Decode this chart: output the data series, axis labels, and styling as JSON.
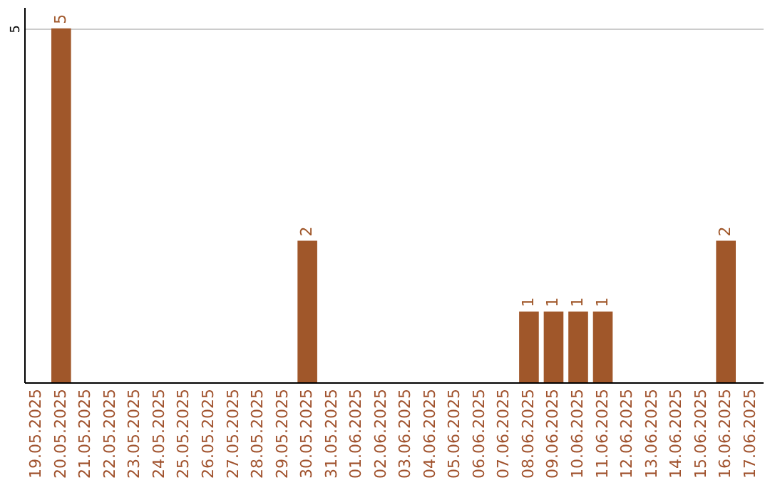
{
  "chart_data": {
    "type": "bar",
    "categories": [
      "19.05.2025",
      "20.05.2025",
      "21.05.2025",
      "22.05.2025",
      "23.05.2025",
      "24.05.2025",
      "25.05.2025",
      "26.05.2025",
      "27.05.2025",
      "28.05.2025",
      "29.05.2025",
      "30.05.2025",
      "31.05.2025",
      "01.06.2025",
      "02.06.2025",
      "03.06.2025",
      "04.06.2025",
      "05.06.2025",
      "06.06.2025",
      "07.06.2025",
      "08.06.2025",
      "09.06.2025",
      "10.06.2025",
      "11.06.2025",
      "12.06.2025",
      "13.06.2025",
      "14.06.2025",
      "15.06.2025",
      "16.06.2025",
      "17.06.2025"
    ],
    "values": [
      0,
      5,
      0,
      0,
      0,
      0,
      0,
      0,
      0,
      0,
      0,
      2,
      0,
      0,
      0,
      0,
      0,
      0,
      0,
      0,
      1,
      1,
      1,
      1,
      0,
      0,
      0,
      0,
      2,
      0
    ],
    "value_labels": [
      null,
      "5",
      null,
      null,
      null,
      null,
      null,
      null,
      null,
      null,
      null,
      "2",
      null,
      null,
      null,
      null,
      null,
      null,
      null,
      null,
      "1",
      "1",
      "1",
      "1",
      null,
      null,
      null,
      null,
      "2",
      null
    ],
    "color": "#a0572a",
    "ylim": [
      0,
      5.3
    ],
    "yticks": [
      5
    ],
    "grid": "y"
  }
}
